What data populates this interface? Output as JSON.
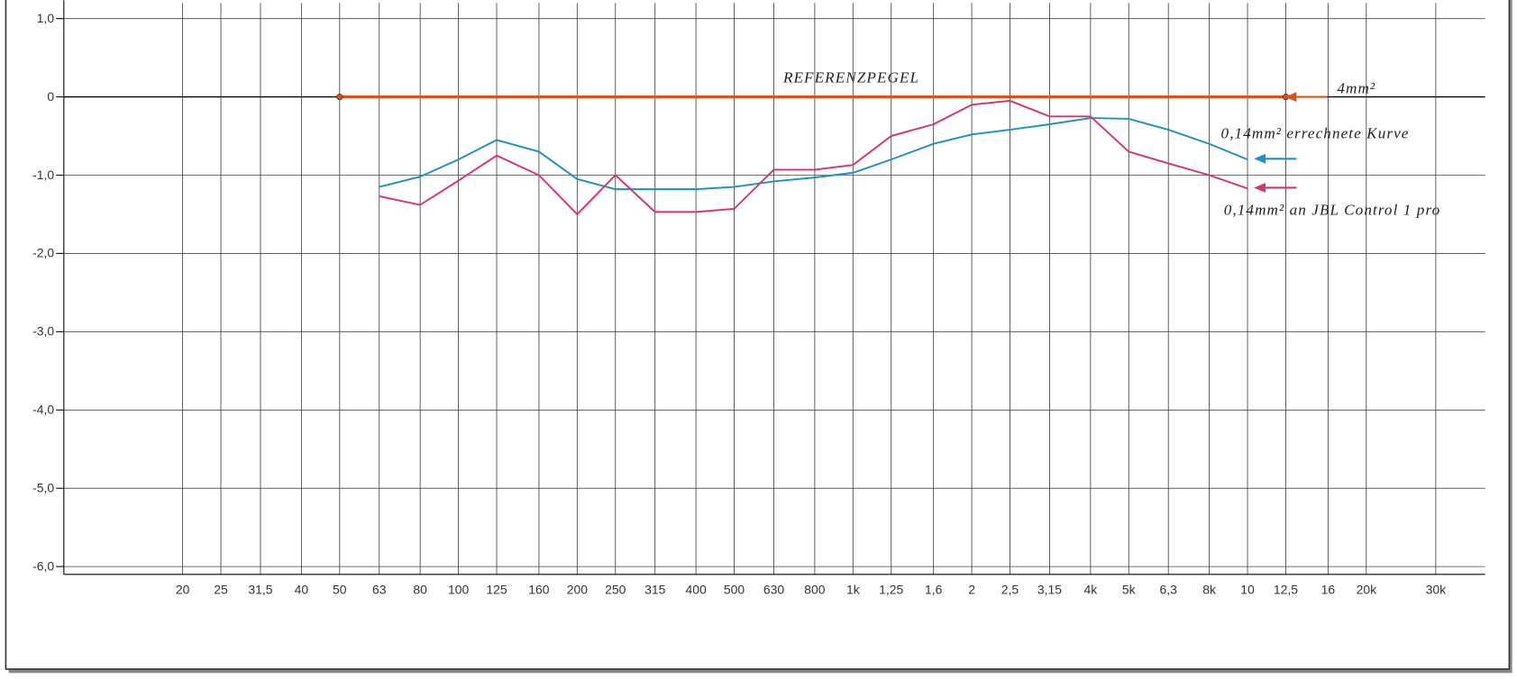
{
  "chart_data": {
    "type": "line",
    "annotation": "REFERENZPEGEL",
    "xscale": "log",
    "grid": true,
    "xlim": [
      10,
      40000
    ],
    "ylim": [
      -6.1,
      1.2
    ],
    "xticks": [
      20,
      25,
      {
        "value": 31.5,
        "label": "31,5"
      },
      40,
      50,
      63,
      80,
      100,
      125,
      160,
      200,
      250,
      315,
      400,
      500,
      630,
      800,
      {
        "value": 1000,
        "label": "1k"
      },
      {
        "value": 1250,
        "label": "1,25"
      },
      {
        "value": 1600,
        "label": "1,6"
      },
      {
        "value": 2000,
        "label": "2"
      },
      {
        "value": 2500,
        "label": "2,5"
      },
      {
        "value": 3150,
        "label": "3,15"
      },
      {
        "value": 4000,
        "label": "4k"
      },
      {
        "value": 5000,
        "label": "5k"
      },
      {
        "value": 6300,
        "label": "6,3"
      },
      {
        "value": 8000,
        "label": "8k"
      },
      {
        "value": 10000,
        "label": "10"
      },
      {
        "value": 12500,
        "label": "12,5"
      },
      {
        "value": 16000,
        "label": "16"
      },
      {
        "value": 20000,
        "label": "20k"
      },
      {
        "value": 30000,
        "label": "30k"
      }
    ],
    "yticks": [
      {
        "value": 1,
        "label": "1,0"
      },
      0,
      {
        "value": -1,
        "label": "-1,0"
      },
      {
        "value": -2,
        "label": "-2,0"
      },
      {
        "value": -3,
        "label": "-3,0"
      },
      {
        "value": -4,
        "label": "-4,0"
      },
      {
        "value": -5,
        "label": "-5,0"
      },
      {
        "value": -6,
        "label": "-6,0"
      }
    ],
    "series": [
      {
        "name": "4mm²",
        "color": "#d9531e",
        "x": [
          50,
          12500
        ],
        "values": [
          0,
          0
        ]
      },
      {
        "name": "0,14mm² errechnete Kurve",
        "color": "#1b8fc6",
        "x": [
          63,
          80,
          100,
          125,
          160,
          200,
          250,
          315,
          400,
          500,
          630,
          800,
          1000,
          1250,
          1600,
          2000,
          2500,
          3150,
          4000,
          5000,
          6300,
          8000,
          10000
        ],
        "values": [
          -1.15,
          -1.02,
          -0.8,
          -0.55,
          -0.7,
          -1.05,
          -1.18,
          -1.18,
          -1.18,
          -1.15,
          -1.08,
          -1.03,
          -0.97,
          -0.8,
          -0.6,
          -0.48,
          -0.42,
          -0.35,
          -0.27,
          -0.28,
          -0.42,
          -0.6,
          -0.8
        ]
      },
      {
        "name": "0,14mm² an JBL Control 1 pro",
        "color": "#d6336f",
        "x": [
          63,
          80,
          100,
          125,
          160,
          200,
          250,
          315,
          400,
          500,
          630,
          800,
          1000,
          1250,
          1600,
          2000,
          2500,
          3150,
          4000,
          5000,
          6300,
          8000,
          10000
        ],
        "values": [
          -1.27,
          -1.38,
          -1.07,
          -0.75,
          -1.0,
          -1.5,
          -1.0,
          -1.47,
          -1.47,
          -1.43,
          -0.93,
          -0.93,
          -0.87,
          -0.5,
          -0.35,
          -0.1,
          -0.05,
          -0.25,
          -0.25,
          -0.7,
          -0.85,
          -1.0,
          -1.17
        ]
      }
    ]
  }
}
